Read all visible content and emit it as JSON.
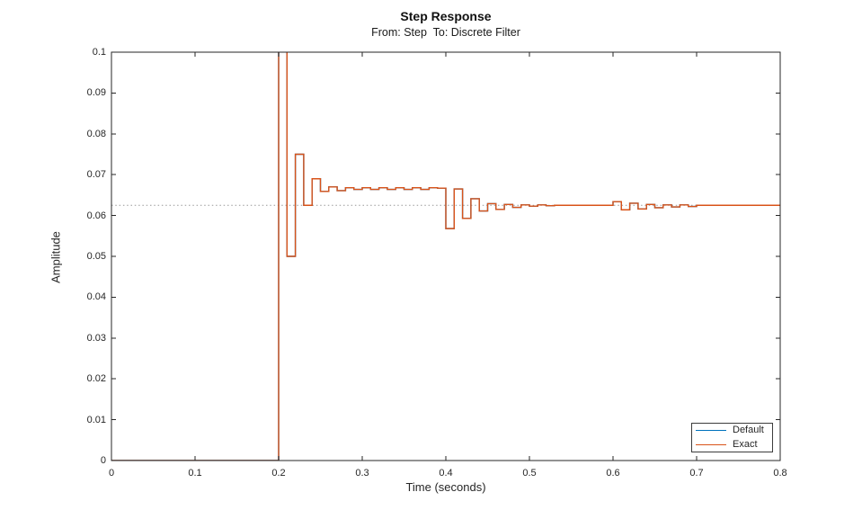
{
  "chart_data": {
    "type": "line",
    "subtype": "stairstep",
    "title": "Step Response",
    "subtitle": "From: Step  To: Discrete Filter",
    "xlabel": "Time (seconds)",
    "ylabel": "Amplitude",
    "xlim": [
      0,
      0.8
    ],
    "ylim": [
      0,
      0.1
    ],
    "xticks": [
      0,
      0.1,
      0.2,
      0.3,
      0.4,
      0.5,
      0.6,
      0.7,
      0.8
    ],
    "xtick_labels": [
      "0",
      "0.1",
      "0.2",
      "0.3",
      "0.4",
      "0.5",
      "0.6",
      "0.7",
      "0.8"
    ],
    "yticks": [
      0,
      0.01,
      0.02,
      0.03,
      0.04,
      0.05,
      0.06,
      0.07,
      0.08,
      0.09,
      0.1
    ],
    "ytick_labels": [
      "0",
      "0.01",
      "0.02",
      "0.03",
      "0.04",
      "0.05",
      "0.06",
      "0.07",
      "0.08",
      "0.09",
      "0.1"
    ],
    "grid": false,
    "box": true,
    "axis_color": "#262626",
    "steady_state_value": 0.0625,
    "steady_state_line": {
      "style": "dotted",
      "color": "#999999"
    },
    "legend": {
      "position": "southeast",
      "entries": [
        {
          "label": "Default",
          "color": "#0072BD"
        },
        {
          "label": "Exact",
          "color": "#D95319"
        }
      ]
    },
    "series_note": "Default (blue) lies exactly beneath Exact (orange); only orange is visible",
    "offscale_note": "sample at t=0.20 exceeds the y-axis limit and is clipped at the top of the axes",
    "sample_time_s": 0.01,
    "step_points": [
      [
        0.0,
        0
      ],
      [
        0.2,
        0.12
      ],
      [
        0.21,
        0.05
      ],
      [
        0.22,
        0.075
      ],
      [
        0.23,
        0.0625
      ],
      [
        0.24,
        0.069
      ],
      [
        0.25,
        0.0659
      ],
      [
        0.26,
        0.067
      ],
      [
        0.27,
        0.0661
      ],
      [
        0.28,
        0.0668
      ],
      [
        0.29,
        0.0664
      ],
      [
        0.3,
        0.0668
      ],
      [
        0.31,
        0.0664
      ],
      [
        0.32,
        0.0668
      ],
      [
        0.33,
        0.0664
      ],
      [
        0.34,
        0.0668
      ],
      [
        0.35,
        0.0664
      ],
      [
        0.36,
        0.0668
      ],
      [
        0.37,
        0.0664
      ],
      [
        0.38,
        0.0668
      ],
      [
        0.39,
        0.0667
      ],
      [
        0.4,
        0.0568
      ],
      [
        0.41,
        0.0665
      ],
      [
        0.42,
        0.0593
      ],
      [
        0.43,
        0.0641
      ],
      [
        0.44,
        0.0611
      ],
      [
        0.45,
        0.0629
      ],
      [
        0.46,
        0.0615
      ],
      [
        0.47,
        0.0627
      ],
      [
        0.48,
        0.062
      ],
      [
        0.49,
        0.0626
      ],
      [
        0.5,
        0.0623
      ],
      [
        0.51,
        0.0626
      ],
      [
        0.52,
        0.0624
      ],
      [
        0.53,
        0.0625
      ],
      [
        0.54,
        0.0625
      ],
      [
        0.55,
        0.0625
      ],
      [
        0.56,
        0.0625
      ],
      [
        0.57,
        0.0625
      ],
      [
        0.58,
        0.0625
      ],
      [
        0.59,
        0.0625
      ],
      [
        0.6,
        0.0634
      ],
      [
        0.61,
        0.0614
      ],
      [
        0.62,
        0.063
      ],
      [
        0.63,
        0.0616
      ],
      [
        0.64,
        0.0627
      ],
      [
        0.65,
        0.0619
      ],
      [
        0.66,
        0.0626
      ],
      [
        0.67,
        0.0621
      ],
      [
        0.68,
        0.0626
      ],
      [
        0.69,
        0.0622
      ],
      [
        0.7,
        0.0625
      ]
    ]
  }
}
